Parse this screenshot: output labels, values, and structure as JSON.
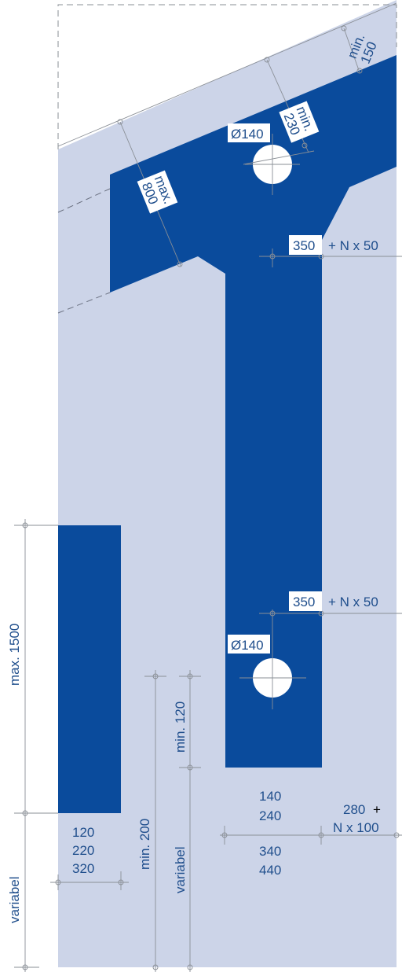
{
  "colors": {
    "background": "#ffffff",
    "panel": "#ccd4e8",
    "steel": "#0a4b9c",
    "label_blue": "#1f4e8c",
    "dimension_line": "#8a8f96"
  },
  "labels": {
    "min150_a": "min.",
    "min150_b": "150",
    "min230_a": "min.",
    "min230_b": "230",
    "max800_a": "max.",
    "max800_b": "800",
    "hole_top": "Ø140",
    "hole_bottom": "Ø140",
    "spacing_top_box": "350",
    "spacing_top_rest": "+ N x 50",
    "spacing_bottom_box": "350",
    "spacing_bottom_rest": "+ N x 50",
    "max1500": "max. 1500",
    "variabel_left": "variabel",
    "min200": "min. 200",
    "variabel_mid": "variabel",
    "min120": "min. 120",
    "widths_left": [
      "120",
      "220",
      "320"
    ],
    "widths_mid_top": [
      "140",
      "240"
    ],
    "widths_mid_bottom": [
      "340",
      "440"
    ],
    "pitch_a": "280",
    "pitch_plus": "+",
    "pitch_b": "N x 100"
  }
}
